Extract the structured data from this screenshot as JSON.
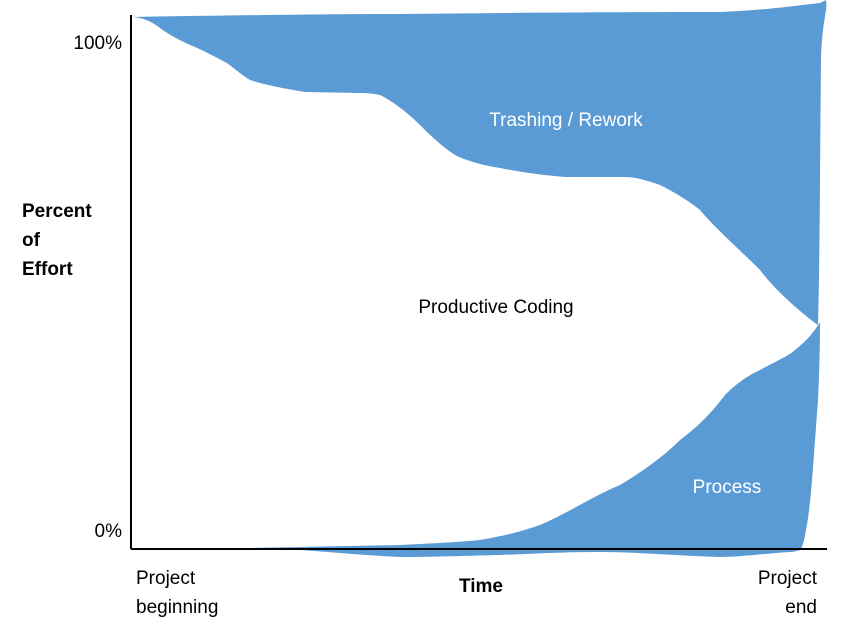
{
  "y_axis": {
    "title_lines": [
      "Percent",
      "of",
      "Effort"
    ],
    "top_label": "100%",
    "bottom_label": "0%"
  },
  "x_axis": {
    "title": "Time",
    "start_label_lines": [
      "Project",
      "beginning"
    ],
    "end_label_lines": [
      "Project",
      "end"
    ]
  },
  "regions": {
    "top": "Trashing / Rework",
    "middle": "Productive Coding",
    "bottom": "Process"
  }
}
